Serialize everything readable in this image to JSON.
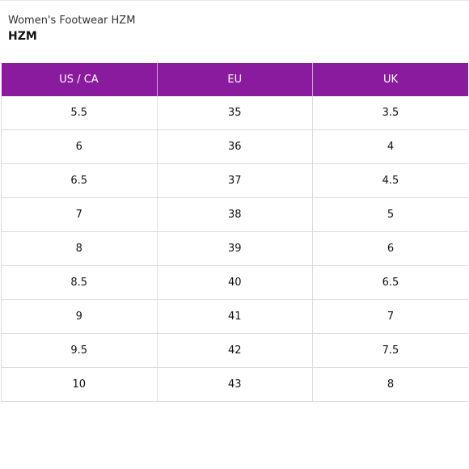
{
  "header": {
    "subtitle": "Women's Footwear HZM",
    "title": "HZM"
  },
  "table": {
    "columns": [
      "US / CA",
      "EU",
      "UK"
    ],
    "rows": [
      [
        "5.5",
        "35",
        "3.5"
      ],
      [
        "6",
        "36",
        "4"
      ],
      [
        "6.5",
        "37",
        "4.5"
      ],
      [
        "7",
        "38",
        "5"
      ],
      [
        "8",
        "39",
        "6"
      ],
      [
        "8.5",
        "40",
        "6.5"
      ],
      [
        "9",
        "41",
        "7"
      ],
      [
        "9.5",
        "42",
        "7.5"
      ],
      [
        "10",
        "43",
        "8"
      ]
    ]
  },
  "colors": {
    "header_bg": "#8a1b9e",
    "header_text": "#ffffff",
    "grid_line": "#dcdcdc"
  }
}
